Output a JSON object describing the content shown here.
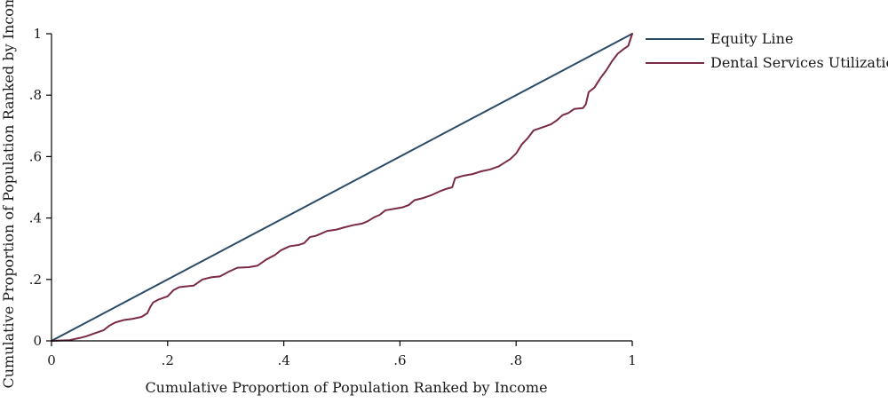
{
  "chart_data": {
    "type": "line",
    "title": "",
    "xlabel": "Cumulative Proportion of Population Ranked by Income",
    "ylabel": "Cumulative Proportion of Population Ranked by Income",
    "xlim": [
      0,
      1
    ],
    "ylim": [
      0,
      1
    ],
    "x_ticks": [
      {
        "value": 0,
        "label": "0"
      },
      {
        "value": 0.2,
        "label": ".2"
      },
      {
        "value": 0.4,
        "label": ".4"
      },
      {
        "value": 0.6,
        "label": ".6"
      },
      {
        "value": 0.8,
        "label": ".8"
      },
      {
        "value": 1,
        "label": "1"
      }
    ],
    "y_ticks": [
      {
        "value": 0,
        "label": "0"
      },
      {
        "value": 0.2,
        "label": ".2"
      },
      {
        "value": 0.4,
        "label": ".4"
      },
      {
        "value": 0.6,
        "label": ".6"
      },
      {
        "value": 0.8,
        "label": ".8"
      },
      {
        "value": 1,
        "label": "1"
      }
    ],
    "grid": false,
    "legend_position": "top-right",
    "series": [
      {
        "name": "Equity Line",
        "color": "#2b4a66",
        "points": [
          [
            0,
            0
          ],
          [
            1,
            1
          ]
        ]
      },
      {
        "name": "Dental Services Utilization",
        "color": "#7a2a45",
        "points": [
          [
            0,
            0
          ],
          [
            0.03,
            0.002
          ],
          [
            0.05,
            0.01
          ],
          [
            0.06,
            0.015
          ],
          [
            0.075,
            0.025
          ],
          [
            0.09,
            0.035
          ],
          [
            0.1,
            0.05
          ],
          [
            0.11,
            0.06
          ],
          [
            0.125,
            0.068
          ],
          [
            0.14,
            0.072
          ],
          [
            0.155,
            0.078
          ],
          [
            0.165,
            0.09
          ],
          [
            0.17,
            0.11
          ],
          [
            0.175,
            0.125
          ],
          [
            0.185,
            0.135
          ],
          [
            0.2,
            0.145
          ],
          [
            0.21,
            0.165
          ],
          [
            0.22,
            0.175
          ],
          [
            0.235,
            0.178
          ],
          [
            0.245,
            0.18
          ],
          [
            0.26,
            0.2
          ],
          [
            0.275,
            0.207
          ],
          [
            0.29,
            0.21
          ],
          [
            0.305,
            0.225
          ],
          [
            0.32,
            0.238
          ],
          [
            0.34,
            0.24
          ],
          [
            0.355,
            0.245
          ],
          [
            0.37,
            0.265
          ],
          [
            0.385,
            0.28
          ],
          [
            0.395,
            0.295
          ],
          [
            0.41,
            0.308
          ],
          [
            0.425,
            0.312
          ],
          [
            0.435,
            0.318
          ],
          [
            0.445,
            0.338
          ],
          [
            0.455,
            0.342
          ],
          [
            0.465,
            0.35
          ],
          [
            0.475,
            0.358
          ],
          [
            0.49,
            0.362
          ],
          [
            0.505,
            0.37
          ],
          [
            0.52,
            0.377
          ],
          [
            0.535,
            0.382
          ],
          [
            0.545,
            0.39
          ],
          [
            0.555,
            0.402
          ],
          [
            0.565,
            0.41
          ],
          [
            0.575,
            0.425
          ],
          [
            0.59,
            0.43
          ],
          [
            0.605,
            0.435
          ],
          [
            0.615,
            0.442
          ],
          [
            0.625,
            0.458
          ],
          [
            0.64,
            0.465
          ],
          [
            0.655,
            0.475
          ],
          [
            0.67,
            0.488
          ],
          [
            0.68,
            0.495
          ],
          [
            0.69,
            0.5
          ],
          [
            0.695,
            0.53
          ],
          [
            0.71,
            0.538
          ],
          [
            0.725,
            0.543
          ],
          [
            0.74,
            0.552
          ],
          [
            0.755,
            0.558
          ],
          [
            0.77,
            0.568
          ],
          [
            0.78,
            0.58
          ],
          [
            0.79,
            0.592
          ],
          [
            0.8,
            0.61
          ],
          [
            0.81,
            0.64
          ],
          [
            0.82,
            0.66
          ],
          [
            0.83,
            0.685
          ],
          [
            0.845,
            0.695
          ],
          [
            0.86,
            0.705
          ],
          [
            0.87,
            0.718
          ],
          [
            0.88,
            0.735
          ],
          [
            0.89,
            0.742
          ],
          [
            0.9,
            0.755
          ],
          [
            0.915,
            0.758
          ],
          [
            0.92,
            0.77
          ],
          [
            0.925,
            0.81
          ],
          [
            0.935,
            0.825
          ],
          [
            0.945,
            0.855
          ],
          [
            0.955,
            0.88
          ],
          [
            0.965,
            0.91
          ],
          [
            0.975,
            0.935
          ],
          [
            0.985,
            0.95
          ],
          [
            0.993,
            0.96
          ],
          [
            1,
            1
          ]
        ]
      }
    ]
  }
}
